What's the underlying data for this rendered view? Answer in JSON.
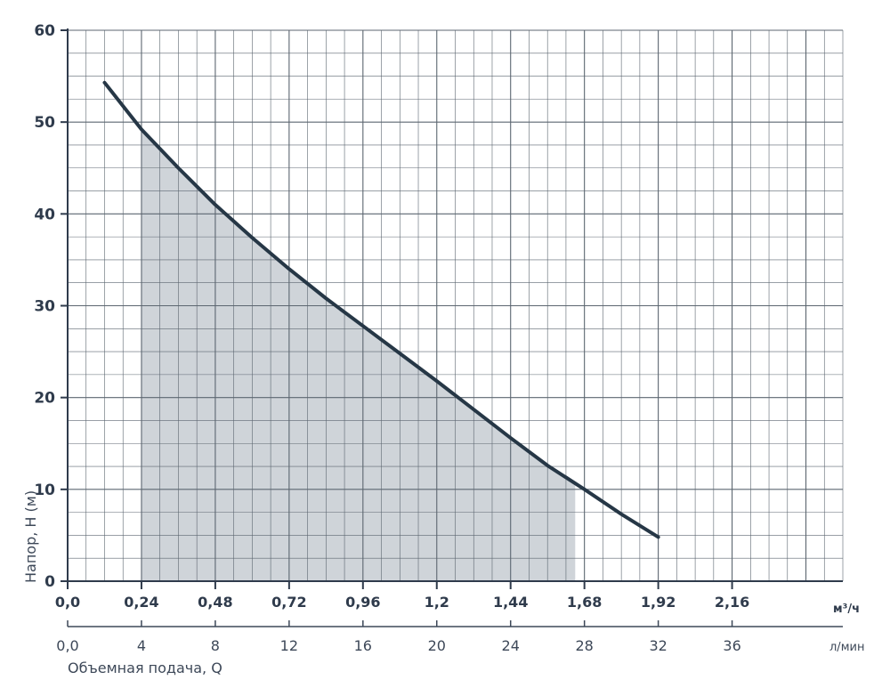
{
  "chart_data": {
    "type": "line",
    "title": "",
    "ylabel": "Напор, H (м)",
    "xlabel": "Объемная подача, Q",
    "ylim": [
      0,
      60
    ],
    "xlim_m3h": [
      0,
      2.52
    ],
    "xlim_lmin": [
      0,
      42
    ],
    "y_ticks": [
      "0",
      "10",
      "20",
      "30",
      "40",
      "50",
      "60"
    ],
    "x_ticks_m3h": [
      "0,0",
      "0,24",
      "0,48",
      "0,72",
      "0,96",
      "1,2",
      "1,44",
      "1,68",
      "1,92",
      "2,16"
    ],
    "x_unit_m3h": "м³/ч",
    "x_ticks_lmin": [
      "0,0",
      "4",
      "8",
      "12",
      "16",
      "20",
      "24",
      "28",
      "32",
      "36"
    ],
    "x_unit_lmin": "л/мин",
    "grid": true,
    "series": [
      {
        "x": [
          0.12,
          0.24,
          0.36,
          0.48,
          0.6,
          0.72,
          0.84,
          0.96,
          1.08,
          1.2,
          1.32,
          1.44,
          1.56,
          1.68,
          1.8,
          1.92
        ],
        "y": [
          54.3,
          49.2,
          45.0,
          41.0,
          37.4,
          34.0,
          30.8,
          27.8,
          24.8,
          21.8,
          18.7,
          15.6,
          12.6,
          10.0,
          7.3,
          4.8
        ]
      }
    ],
    "shaded_range_m3h": [
      0.24,
      1.65
    ],
    "colors": {
      "curve": "#263746",
      "shade": "#cfd4d9",
      "grid": "#5c6670",
      "text": "#2f3b4c"
    }
  }
}
